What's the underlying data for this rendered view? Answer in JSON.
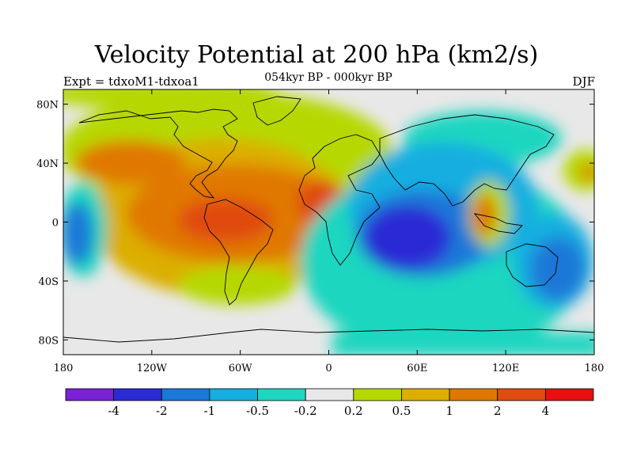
{
  "title": "Velocity Potential at 200 hPa (km2/s)",
  "subtitle": "054kyr BP - 000kyr BP",
  "left_label": "Expt = tdxoM1-tdxoa1",
  "right_label": "DJF",
  "map": {
    "lon_range": [
      -180,
      180
    ],
    "lat_range": [
      -90,
      90
    ],
    "x_ticks": [
      {
        "value": -180,
        "label": "180"
      },
      {
        "value": -120,
        "label": "120W"
      },
      {
        "value": -60,
        "label": "60W"
      },
      {
        "value": 0,
        "label": "0"
      },
      {
        "value": 60,
        "label": "60E"
      },
      {
        "value": 120,
        "label": "120E"
      },
      {
        "value": 180,
        "label": "180"
      }
    ],
    "y_ticks": [
      {
        "value": 80,
        "label": "80N"
      },
      {
        "value": 40,
        "label": "40N"
      },
      {
        "value": 0,
        "label": "0"
      },
      {
        "value": -40,
        "label": "40S"
      },
      {
        "value": -80,
        "label": "80S"
      }
    ]
  },
  "colorbar": {
    "colors": [
      "#7a22d6",
      "#2b2bd4",
      "#1a78d8",
      "#14aee0",
      "#1fd6c0",
      "#e8e8e8",
      "#b6d800",
      "#dcae00",
      "#e07800",
      "#e04c10",
      "#e81010"
    ],
    "labels": [
      "-4",
      "-2",
      "-1",
      "-0.5",
      "-0.2",
      "0.2",
      "0.5",
      "1",
      "2",
      "4"
    ]
  }
}
